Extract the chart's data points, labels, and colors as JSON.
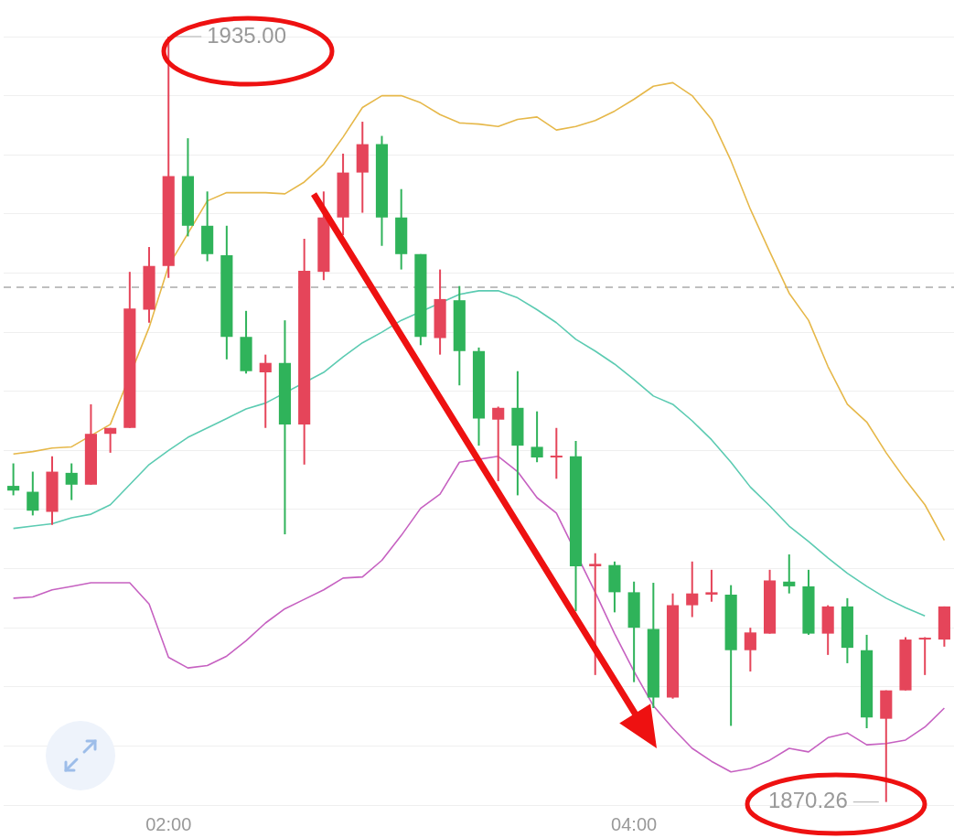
{
  "chart_data": {
    "type": "candlestick",
    "categories": [
      null,
      null,
      null,
      null,
      null,
      null,
      null,
      null,
      "02:00",
      null,
      null,
      null,
      null,
      null,
      null,
      null,
      null,
      null,
      null,
      null,
      null,
      null,
      null,
      null,
      null,
      null,
      null,
      null,
      null,
      null,
      null,
      null,
      "04:00",
      null,
      null,
      null,
      null,
      null,
      null,
      null,
      null,
      null,
      null,
      null,
      null,
      null,
      null,
      null,
      null
    ],
    "ohlc": [
      [
        1897.0,
        1898.9,
        1896.2,
        1896.6
      ],
      [
        1896.5,
        1898.2,
        1894.5,
        1894.9
      ],
      [
        1894.8,
        1899.5,
        1893.7,
        1898.2
      ],
      [
        1898.1,
        1898.9,
        1895.8,
        1897.1
      ],
      [
        1897.1,
        1903.9,
        1897.1,
        1901.4
      ],
      [
        1901.4,
        1901.9,
        1899.8,
        1901.9
      ],
      [
        1901.9,
        1915.1,
        1901.9,
        1912.0
      ],
      [
        1911.9,
        1917.2,
        1910.8,
        1915.6
      ],
      [
        1915.6,
        1935.0,
        1914.6,
        1923.2
      ],
      [
        1923.2,
        1926.4,
        1918.1,
        1919.0
      ],
      [
        1919.0,
        1921.9,
        1916.0,
        1916.6
      ],
      [
        1916.5,
        1919.0,
        1907.7,
        1909.6
      ],
      [
        1909.6,
        1911.8,
        1906.5,
        1906.7
      ],
      [
        1906.6,
        1908.1,
        1901.9,
        1907.4
      ],
      [
        1907.4,
        1911.0,
        1892.9,
        1902.2
      ],
      [
        1902.2,
        1917.9,
        1898.8,
        1915.2
      ],
      [
        1915.1,
        1921.9,
        1914.4,
        1919.7
      ],
      [
        1919.7,
        1925.1,
        1918.2,
        1923.5
      ],
      [
        1923.5,
        1927.8,
        1920.1,
        1925.9
      ],
      [
        1925.9,
        1926.6,
        1917.3,
        1919.7
      ],
      [
        1919.7,
        1922.1,
        1915.3,
        1916.6
      ],
      [
        1916.6,
        1916.6,
        1908.9,
        1909.6
      ],
      [
        1909.5,
        1915.3,
        1908.1,
        1912.8
      ],
      [
        1912.7,
        1913.9,
        1905.5,
        1908.4
      ],
      [
        1908.4,
        1908.7,
        1900.4,
        1902.7
      ],
      [
        1902.6,
        1903.7,
        1897.4,
        1903.6
      ],
      [
        1903.6,
        1906.7,
        1896.2,
        1900.4
      ],
      [
        1900.3,
        1903.3,
        1899.0,
        1899.4
      ],
      [
        1899.4,
        1901.9,
        1897.6,
        1899.5
      ],
      [
        1899.5,
        1900.8,
        1886.4,
        1890.2
      ],
      [
        1890.2,
        1891.3,
        1881.0,
        1890.4
      ],
      [
        1890.3,
        1890.6,
        1886.3,
        1888.0
      ],
      [
        1888.0,
        1888.9,
        1880.4,
        1885.0
      ],
      [
        1884.9,
        1888.8,
        1878.2,
        1879.1
      ],
      [
        1879.1,
        1887.9,
        1879.0,
        1886.9
      ],
      [
        1886.9,
        1890.6,
        1885.9,
        1887.9
      ],
      [
        1887.8,
        1889.9,
        1887.2,
        1888.0
      ],
      [
        1887.8,
        1888.6,
        1876.7,
        1883.1
      ],
      [
        1883.1,
        1885.0,
        1881.3,
        1884.6
      ],
      [
        1884.5,
        1889.9,
        1884.5,
        1889.0
      ],
      [
        1888.9,
        1891.2,
        1887.9,
        1888.5
      ],
      [
        1888.5,
        1889.9,
        1884.4,
        1884.5
      ],
      [
        1884.5,
        1886.9,
        1882.7,
        1886.8
      ],
      [
        1886.8,
        1887.5,
        1882.0,
        1883.3
      ],
      [
        1883.1,
        1884.4,
        1876.5,
        1877.4
      ],
      [
        1877.3,
        1879.7,
        1870.26,
        1879.7
      ],
      [
        1879.7,
        1884.2,
        1879.7,
        1884.0
      ],
      [
        1884.0,
        1884.2,
        1881.0,
        1884.1
      ],
      [
        1884.0,
        1886.8,
        1883.4,
        1886.8
      ]
    ],
    "colors": [
      "#2fb35a",
      "#2fb35a",
      "#e5455a",
      "#2fb35a",
      "#e5455a",
      "#e5455a",
      "#e5455a",
      "#e5455a",
      "#e5455a",
      "#2fb35a",
      "#2fb35a",
      "#2fb35a",
      "#2fb35a",
      "#e5455a",
      "#2fb35a",
      "#e5455a",
      "#e5455a",
      "#e5455a",
      "#e5455a",
      "#2fb35a",
      "#2fb35a",
      "#2fb35a",
      "#e5455a",
      "#2fb35a",
      "#2fb35a",
      "#e5455a",
      "#2fb35a",
      "#2fb35a",
      "#e5455a",
      "#2fb35a",
      "#e5455a",
      "#2fb35a",
      "#2fb35a",
      "#2fb35a",
      "#e5455a",
      "#e5455a",
      "#e5455a",
      "#2fb35a",
      "#e5455a",
      "#e5455a",
      "#2fb35a",
      "#2fb35a",
      "#e5455a",
      "#2fb35a",
      "#2fb35a",
      "#e5455a",
      "#e5455a",
      "#e5455a",
      "#e5455a"
    ],
    "series": [
      {
        "type": "line",
        "color": "#e6b84a",
        "values": [
          1899.7,
          1899.9,
          1900.2,
          1900.3,
          null,
          1902.2,
          null,
          1910.4,
          1915.6,
          null,
          1921.1,
          1921.8,
          1921.8,
          1921.8,
          1921.7,
          1922.7,
          1924.2,
          1926.5,
          1929.0,
          1930.0,
          1930.0,
          1929.4,
          1928.4,
          1927.7,
          1927.6,
          1927.4,
          1928.0,
          1928.2,
          1927.1,
          1927.4,
          1927.9,
          1928.7,
          1929.7,
          1930.8,
          1931.1,
          1930.0,
          1928.0,
          1924.5,
          1920.4,
          1916.8,
          1913.3,
          1911.0,
          1907.1,
          1903.9,
          1902.4,
          1899.8,
          1897.5,
          1895.4,
          1892.4
        ]
      },
      {
        "type": "line",
        "color": "#5ccbb2",
        "values": [
          1893.4,
          1893.6,
          1893.8,
          1894.3,
          1894.6,
          1895.4,
          1897.1,
          1898.8,
          1900.0,
          1901.1,
          1901.9,
          1902.7,
          1903.5,
          1904.0,
          null,
          null,
          1906.6,
          1907.9,
          1909.1,
          1910.0,
          1911.0,
          null,
          null,
          1913.2,
          1913.5,
          1913.5,
          1912.9,
          1911.9,
          1910.8,
          1909.4,
          1908.4,
          1907.3,
          1906.0,
          1904.6,
          1903.9,
          1902.5,
          1900.9,
          1899.0,
          1896.9,
          1895.3,
          1893.6,
          1892.3,
          1890.9,
          1889.6,
          1888.5,
          1887.5,
          1886.7,
          1886.0,
          null
        ]
      },
      {
        "type": "line",
        "color": "#c661c1",
        "values": [
          1887.5,
          1887.6,
          1888.2,
          1888.5,
          1888.8,
          1888.8,
          1888.8,
          1887.0,
          1882.5,
          1881.6,
          1881.8,
          1882.6,
          1883.9,
          1885.4,
          1886.6,
          1887.4,
          1888.2,
          1889.2,
          1889.3,
          1890.7,
          1892.8,
          1895.1,
          1896.3,
          1899.0,
          null,
          1899.5,
          1898.2,
          1896.0,
          1894.7,
          null,
          1888.0,
          1884.5,
          1881.3,
          1878.4,
          1876.5,
          1874.8,
          1873.7,
          1872.8,
          1873.1,
          1873.8,
          1874.8,
          1874.5,
          1875.7,
          1876.1,
          1875.1,
          1875.2,
          1875.5,
          1876.6,
          1878.2
        ]
      }
    ],
    "ylim": [
      1870,
      1935
    ],
    "yticks": [
      {
        "value": 1870,
        "label": null
      },
      {
        "value": 1875,
        "label": null
      },
      {
        "value": 1880,
        "label": null
      },
      {
        "value": 1885,
        "label": null
      },
      {
        "value": 1890,
        "label": null
      },
      {
        "value": 1895,
        "label": null
      },
      {
        "value": 1900,
        "label": null
      },
      {
        "value": 1905,
        "label": null
      },
      {
        "value": 1910,
        "label": null
      },
      {
        "value": 1915,
        "label": null
      },
      {
        "value": 1920,
        "label": null
      },
      {
        "value": 1925,
        "label": null
      },
      {
        "value": 1930,
        "label": null
      },
      {
        "value": 1935,
        "label": null
      }
    ],
    "grid": "y",
    "legend": false,
    "tick_labels": "x",
    "ref_lines": [
      {
        "axis": "y",
        "value": 1913.8,
        "color": "#aaaaaa",
        "line_style": "dashed"
      }
    ],
    "annotations": [
      "1935.00",
      "1870.26"
    ]
  }
}
